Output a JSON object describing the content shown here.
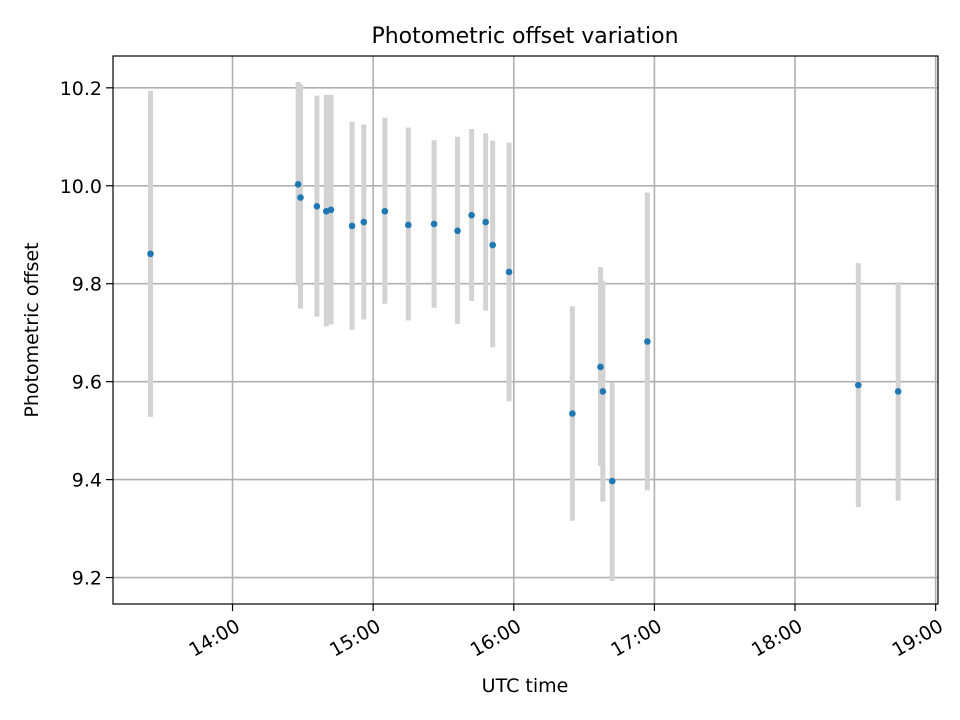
{
  "chart_data": {
    "type": "scatter",
    "title": "Photometric offset variation",
    "xlabel": "UTC time",
    "ylabel": "Photometric offset",
    "xlim": [
      "13:09",
      "19:01"
    ],
    "ylim": [
      9.146,
      10.265
    ],
    "x_ticks": [
      "14:00",
      "15:00",
      "16:00",
      "17:00",
      "18:00",
      "19:00"
    ],
    "y_ticks": [
      9.2,
      9.4,
      9.6,
      9.8,
      10.0,
      10.2
    ],
    "grid": true,
    "point_color": "#1f77b4",
    "errorbar_color": "#d3d3d3",
    "points": [
      {
        "t": "13:25",
        "y": 9.861,
        "lo": 9.528,
        "hi": 10.194
      },
      {
        "t": "14:28",
        "y": 10.003,
        "lo": 9.797,
        "hi": 10.212
      },
      {
        "t": "14:29",
        "y": 9.976,
        "lo": 9.749,
        "hi": 10.207
      },
      {
        "t": "14:36",
        "y": 9.958,
        "lo": 9.733,
        "hi": 10.184
      },
      {
        "t": "14:40",
        "y": 9.948,
        "lo": 9.713,
        "hi": 10.186
      },
      {
        "t": "14:42",
        "y": 9.951,
        "lo": 9.717,
        "hi": 10.186
      },
      {
        "t": "14:51",
        "y": 9.918,
        "lo": 9.706,
        "hi": 10.131
      },
      {
        "t": "14:56",
        "y": 9.926,
        "lo": 9.727,
        "hi": 10.125
      },
      {
        "t": "15:05",
        "y": 9.948,
        "lo": 9.759,
        "hi": 10.139
      },
      {
        "t": "15:15",
        "y": 9.92,
        "lo": 9.725,
        "hi": 10.119
      },
      {
        "t": "15:26",
        "y": 9.922,
        "lo": 9.751,
        "hi": 10.093
      },
      {
        "t": "15:36",
        "y": 9.908,
        "lo": 9.718,
        "hi": 10.1
      },
      {
        "t": "15:42",
        "y": 9.94,
        "lo": 9.765,
        "hi": 10.116
      },
      {
        "t": "15:48",
        "y": 9.926,
        "lo": 9.745,
        "hi": 10.107
      },
      {
        "t": "15:51",
        "y": 9.879,
        "lo": 9.67,
        "hi": 10.092
      },
      {
        "t": "15:58",
        "y": 9.824,
        "lo": 9.56,
        "hi": 10.088
      },
      {
        "t": "16:25",
        "y": 9.535,
        "lo": 9.316,
        "hi": 9.754
      },
      {
        "t": "16:37",
        "y": 9.63,
        "lo": 9.428,
        "hi": 9.834
      },
      {
        "t": "16:38",
        "y": 9.58,
        "lo": 9.355,
        "hi": 9.806
      },
      {
        "t": "16:42",
        "y": 9.397,
        "lo": 9.193,
        "hi": 9.598
      },
      {
        "t": "16:57",
        "y": 9.682,
        "lo": 9.378,
        "hi": 9.986
      },
      {
        "t": "18:27",
        "y": 9.593,
        "lo": 9.344,
        "hi": 9.842
      },
      {
        "t": "18:44",
        "y": 9.58,
        "lo": 9.357,
        "hi": 9.803
      }
    ]
  }
}
